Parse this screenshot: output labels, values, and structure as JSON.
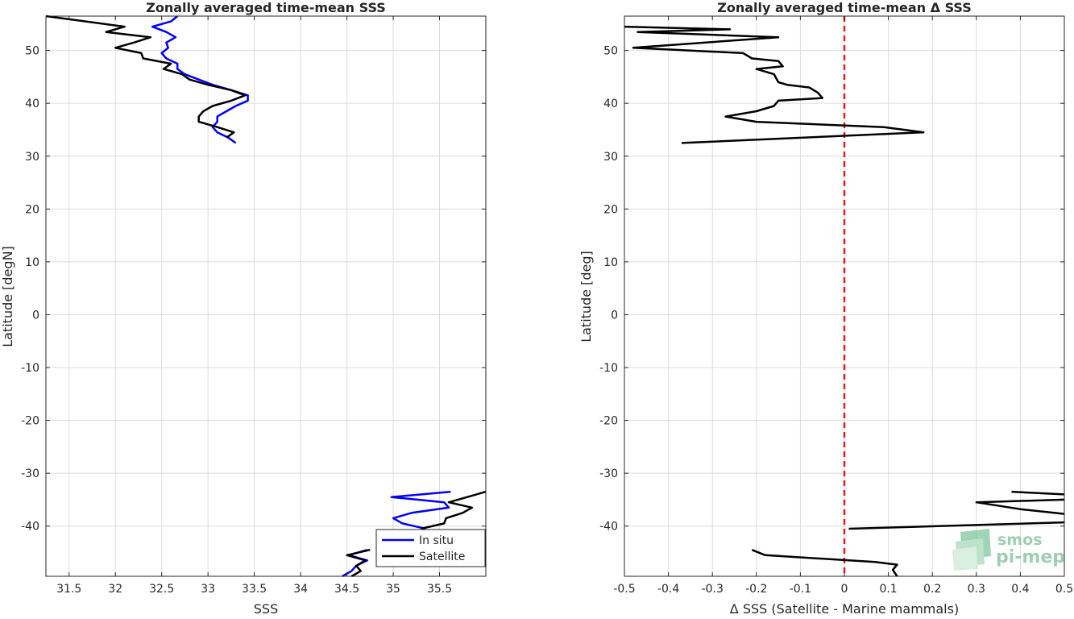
{
  "chart_data": [
    {
      "type": "line",
      "title": "Zonally averaged time-mean SSS",
      "xlabel": "SSS",
      "ylabel": "Latitude [degN]",
      "xlim": [
        31.25,
        36.0
      ],
      "ylim": [
        -49.5,
        56.5
      ],
      "xticks": [
        31.5,
        32,
        32.5,
        33,
        33.5,
        34,
        34.5,
        35,
        35.5
      ],
      "xtick_labels": [
        "31.5",
        "32",
        "32.5",
        "33",
        "33.5",
        "34",
        "34.5",
        "35",
        "35.5"
      ],
      "yticks": [
        -40,
        -30,
        -20,
        -10,
        0,
        10,
        20,
        30,
        40,
        50
      ],
      "ytick_labels": [
        "-40",
        "-30",
        "-20",
        "-10",
        "0",
        "10",
        "20",
        "30",
        "40",
        "50"
      ],
      "grid": true,
      "legend_position": "bottom-right",
      "series": [
        {
          "name": "In situ",
          "color": "#0000ff",
          "segments": [
            [
              [
                32.67,
                56.5
              ],
              [
                32.6,
                55.5
              ],
              [
                32.4,
                54.5
              ],
              [
                32.55,
                53.5
              ],
              [
                32.65,
                52.5
              ],
              [
                32.55,
                51.5
              ],
              [
                32.57,
                50.5
              ],
              [
                32.5,
                49.5
              ],
              [
                32.55,
                48.5
              ],
              [
                32.67,
                47.5
              ],
              [
                32.67,
                46.5
              ],
              [
                32.75,
                45.5
              ],
              [
                32.9,
                44.5
              ],
              [
                33.05,
                43.5
              ],
              [
                33.25,
                42.5
              ],
              [
                33.43,
                41.5
              ],
              [
                33.43,
                40.5
              ],
              [
                33.3,
                39.5
              ],
              [
                33.2,
                38.5
              ],
              [
                33.1,
                37.5
              ],
              [
                33.1,
                36.5
              ],
              [
                33.05,
                35.5
              ],
              [
                33.1,
                34.5
              ],
              [
                33.22,
                33.5
              ],
              [
                33.3,
                32.5
              ]
            ],
            [
              [
                35.62,
                -33.5
              ],
              [
                34.98,
                -34.5
              ],
              [
                35.55,
                -35.5
              ],
              [
                35.6,
                -36.5
              ],
              [
                35.2,
                -37.5
              ],
              [
                35.0,
                -38.5
              ],
              [
                35.1,
                -39.5
              ],
              [
                35.35,
                -40.5
              ]
            ],
            [
              [
                34.72,
                -44.5
              ],
              [
                34.52,
                -45.5
              ],
              [
                34.72,
                -46.5
              ],
              [
                34.6,
                -47.5
              ],
              [
                34.55,
                -48.5
              ],
              [
                34.45,
                -49.5
              ]
            ]
          ]
        },
        {
          "name": "Satellite",
          "color": "#000000",
          "segments": [
            [
              [
                31.25,
                56.5
              ],
              [
                32.1,
                54.5
              ],
              [
                31.9,
                53.5
              ],
              [
                32.38,
                52.5
              ],
              [
                32.2,
                51.5
              ],
              [
                32.0,
                50.5
              ],
              [
                32.28,
                49.5
              ],
              [
                32.3,
                48.5
              ],
              [
                32.6,
                47.5
              ],
              [
                32.52,
                46.5
              ],
              [
                32.72,
                45.5
              ],
              [
                32.8,
                44.5
              ],
              [
                33.0,
                43.5
              ],
              [
                33.25,
                42.5
              ],
              [
                33.4,
                41.5
              ],
              [
                33.25,
                40.5
              ],
              [
                33.05,
                39.5
              ],
              [
                32.95,
                38.5
              ],
              [
                32.9,
                37.5
              ],
              [
                32.9,
                36.5
              ],
              [
                33.1,
                35.5
              ],
              [
                33.28,
                34.5
              ],
              [
                33.2,
                33.5
              ]
            ],
            [
              [
                36.0,
                -33.5
              ],
              [
                35.8,
                -34.5
              ],
              [
                35.6,
                -35.5
              ],
              [
                35.85,
                -36.5
              ],
              [
                35.75,
                -37.5
              ],
              [
                35.57,
                -38.5
              ],
              [
                35.55,
                -39.5
              ],
              [
                35.3,
                -40.5
              ]
            ],
            [
              [
                34.75,
                -44.5
              ],
              [
                34.5,
                -45.5
              ],
              [
                34.7,
                -46.5
              ],
              [
                34.6,
                -47.5
              ],
              [
                34.65,
                -48.5
              ],
              [
                34.55,
                -49.5
              ]
            ]
          ]
        }
      ]
    },
    {
      "type": "line",
      "title": "Zonally averaged time-mean Δ SSS",
      "xlabel": "Δ SSS (Satellite - Marine mammals)",
      "ylabel": "Latitude [deg]",
      "xlim": [
        -0.5,
        0.5
      ],
      "ylim": [
        -49.5,
        56.5
      ],
      "xticks": [
        -0.5,
        -0.4,
        -0.3,
        -0.2,
        -0.1,
        0,
        0.1,
        0.2,
        0.3,
        0.4,
        0.5
      ],
      "xtick_labels": [
        "-0.5",
        "-0.4",
        "-0.3",
        "-0.2",
        "-0.1",
        "0",
        "0.1",
        "0.2",
        "0.3",
        "0.4",
        "0.5"
      ],
      "yticks": [
        -40,
        -30,
        -20,
        -10,
        0,
        10,
        20,
        30,
        40,
        50
      ],
      "ytick_labels": [
        "-40",
        "-30",
        "-20",
        "-10",
        "0",
        "10",
        "20",
        "30",
        "40",
        "50"
      ],
      "grid": true,
      "reference_line": {
        "x": 0,
        "color": "#e41a1c",
        "style": "dashed"
      },
      "series": [
        {
          "color": "#000000",
          "segments": [
            [
              [
                -0.5,
                54.5
              ],
              [
                -0.26,
                54.0
              ],
              [
                -0.47,
                53.5
              ],
              [
                -0.15,
                52.5
              ],
              [
                -0.48,
                50.5
              ],
              [
                -0.23,
                49.5
              ],
              [
                -0.21,
                48.5
              ],
              [
                -0.15,
                48.0
              ],
              [
                -0.14,
                47.0
              ],
              [
                -0.2,
                46.5
              ],
              [
                -0.16,
                45.5
              ],
              [
                -0.15,
                44.0
              ],
              [
                -0.13,
                43.5
              ],
              [
                -0.08,
                43.0
              ],
              [
                -0.06,
                42.0
              ],
              [
                -0.05,
                41.0
              ],
              [
                -0.15,
                40.5
              ],
              [
                -0.16,
                39.5
              ],
              [
                -0.2,
                38.5
              ],
              [
                -0.27,
                37.5
              ],
              [
                -0.2,
                36.5
              ],
              [
                0.09,
                35.5
              ],
              [
                0.18,
                34.5
              ],
              [
                -0.37,
                32.5
              ]
            ],
            [
              [
                0.38,
                -33.5
              ],
              [
                0.5,
                -34.0
              ]
            ],
            [
              [
                0.5,
                -35.0
              ],
              [
                0.3,
                -35.5
              ],
              [
                0.4,
                -36.8
              ],
              [
                0.5,
                -37.7
              ]
            ],
            [
              [
                0.5,
                -39.3
              ],
              [
                0.01,
                -40.5
              ]
            ],
            [
              [
                -0.21,
                -44.5
              ],
              [
                -0.18,
                -45.5
              ],
              [
                0.07,
                -46.8
              ],
              [
                0.12,
                -47.3
              ],
              [
                0.11,
                -48.3
              ],
              [
                0.12,
                -49.5
              ]
            ]
          ]
        }
      ]
    }
  ],
  "legend": {
    "items": [
      "In situ",
      "Satellite"
    ]
  },
  "logo": {
    "line1": "smos",
    "line2": "pi-mep"
  }
}
